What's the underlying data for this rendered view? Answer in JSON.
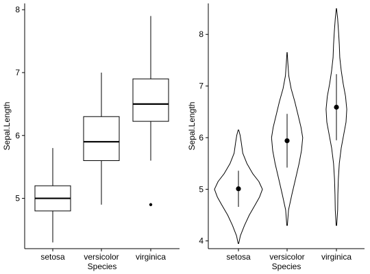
{
  "chart_data": [
    {
      "type": "box",
      "xlabel": "Species",
      "ylabel": "Sepal.Length",
      "categories": [
        "setosa",
        "versicolor",
        "virginica"
      ],
      "ylim": [
        4.2,
        8.1
      ],
      "yticks": [
        "5",
        "6",
        "7",
        "8"
      ],
      "boxes": [
        {
          "category": "setosa",
          "whisker_low": 4.3,
          "q1": 4.8,
          "median": 5.0,
          "q3": 5.2,
          "whisker_high": 5.8,
          "outliers": []
        },
        {
          "category": "versicolor",
          "whisker_low": 4.9,
          "q1": 5.6,
          "median": 5.9,
          "q3": 6.3,
          "whisker_high": 7.0,
          "outliers": []
        },
        {
          "category": "virginica",
          "whisker_low": 5.6,
          "q1": 6.225,
          "median": 6.5,
          "q3": 6.9,
          "whisker_high": 7.9,
          "outliers": [
            4.9
          ]
        }
      ]
    },
    {
      "type": "violin",
      "xlabel": "Species",
      "ylabel": "Sepal.Length",
      "categories": [
        "setosa",
        "versicolor",
        "virginica"
      ],
      "ylim": [
        3.85,
        8.6
      ],
      "yticks": [
        "4",
        "5",
        "6",
        "7",
        "8"
      ],
      "violins": [
        {
          "category": "setosa",
          "mean": 5.01,
          "sd_low": 4.66,
          "sd_high": 5.36,
          "density": [
            [
              3.95,
              0.01
            ],
            [
              4.1,
              0.08
            ],
            [
              4.3,
              0.25
            ],
            [
              4.5,
              0.45
            ],
            [
              4.7,
              0.7
            ],
            [
              4.85,
              0.88
            ],
            [
              5.0,
              1.0
            ],
            [
              5.15,
              0.85
            ],
            [
              5.3,
              0.6
            ],
            [
              5.5,
              0.35
            ],
            [
              5.7,
              0.18
            ],
            [
              5.9,
              0.12
            ],
            [
              6.05,
              0.07
            ],
            [
              6.15,
              0.01
            ]
          ]
        },
        {
          "category": "versicolor",
          "mean": 5.94,
          "sd_low": 5.42,
          "sd_high": 6.46,
          "density": [
            [
              4.3,
              0.01
            ],
            [
              4.6,
              0.06
            ],
            [
              4.9,
              0.2
            ],
            [
              5.2,
              0.35
            ],
            [
              5.5,
              0.5
            ],
            [
              5.75,
              0.6
            ],
            [
              6.0,
              0.65
            ],
            [
              6.2,
              0.58
            ],
            [
              6.45,
              0.45
            ],
            [
              6.7,
              0.32
            ],
            [
              6.95,
              0.17
            ],
            [
              7.2,
              0.07
            ],
            [
              7.45,
              0.03
            ],
            [
              7.65,
              0.005
            ]
          ]
        },
        {
          "category": "virginica",
          "mean": 6.59,
          "sd_low": 5.95,
          "sd_high": 7.23,
          "density": [
            [
              4.3,
              0.01
            ],
            [
              4.6,
              0.05
            ],
            [
              4.9,
              0.06
            ],
            [
              5.2,
              0.08
            ],
            [
              5.5,
              0.12
            ],
            [
              5.8,
              0.2
            ],
            [
              6.05,
              0.3
            ],
            [
              6.3,
              0.4
            ],
            [
              6.55,
              0.43
            ],
            [
              6.8,
              0.38
            ],
            [
              7.05,
              0.28
            ],
            [
              7.3,
              0.2
            ],
            [
              7.55,
              0.14
            ],
            [
              7.8,
              0.12
            ],
            [
              8.05,
              0.09
            ],
            [
              8.3,
              0.05
            ],
            [
              8.5,
              0.005
            ]
          ]
        }
      ]
    }
  ]
}
